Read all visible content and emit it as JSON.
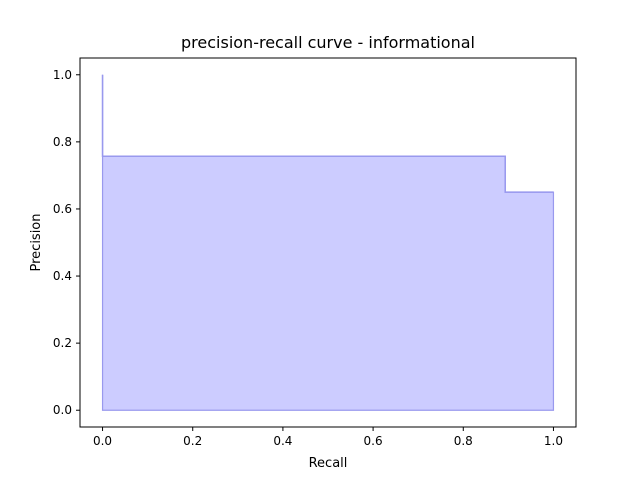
{
  "chart_data": {
    "type": "area",
    "title": "precision-recall curve - informational",
    "xlabel": "Recall",
    "ylabel": "Precision",
    "xlim": [
      -0.05,
      1.05
    ],
    "ylim": [
      -0.05,
      1.05
    ],
    "xticks": [
      0.0,
      0.2,
      0.4,
      0.6,
      0.8,
      1.0
    ],
    "xtick_labels": [
      "0.0",
      "0.2",
      "0.4",
      "0.6",
      "0.8",
      "1.0"
    ],
    "yticks": [
      0.0,
      0.2,
      0.4,
      0.6,
      0.8,
      1.0
    ],
    "ytick_labels": [
      "0.0",
      "0.2",
      "0.4",
      "0.6",
      "0.8",
      "1.0"
    ],
    "grid": false,
    "step": "post",
    "series": [
      {
        "recall": [
          0.0,
          0.0,
          0.893,
          0.893,
          1.0
        ],
        "precision": [
          1.0,
          0.757,
          0.757,
          0.65,
          0.65
        ],
        "fill_color": "#ccccff",
        "line_color": "#9999ee"
      }
    ]
  }
}
